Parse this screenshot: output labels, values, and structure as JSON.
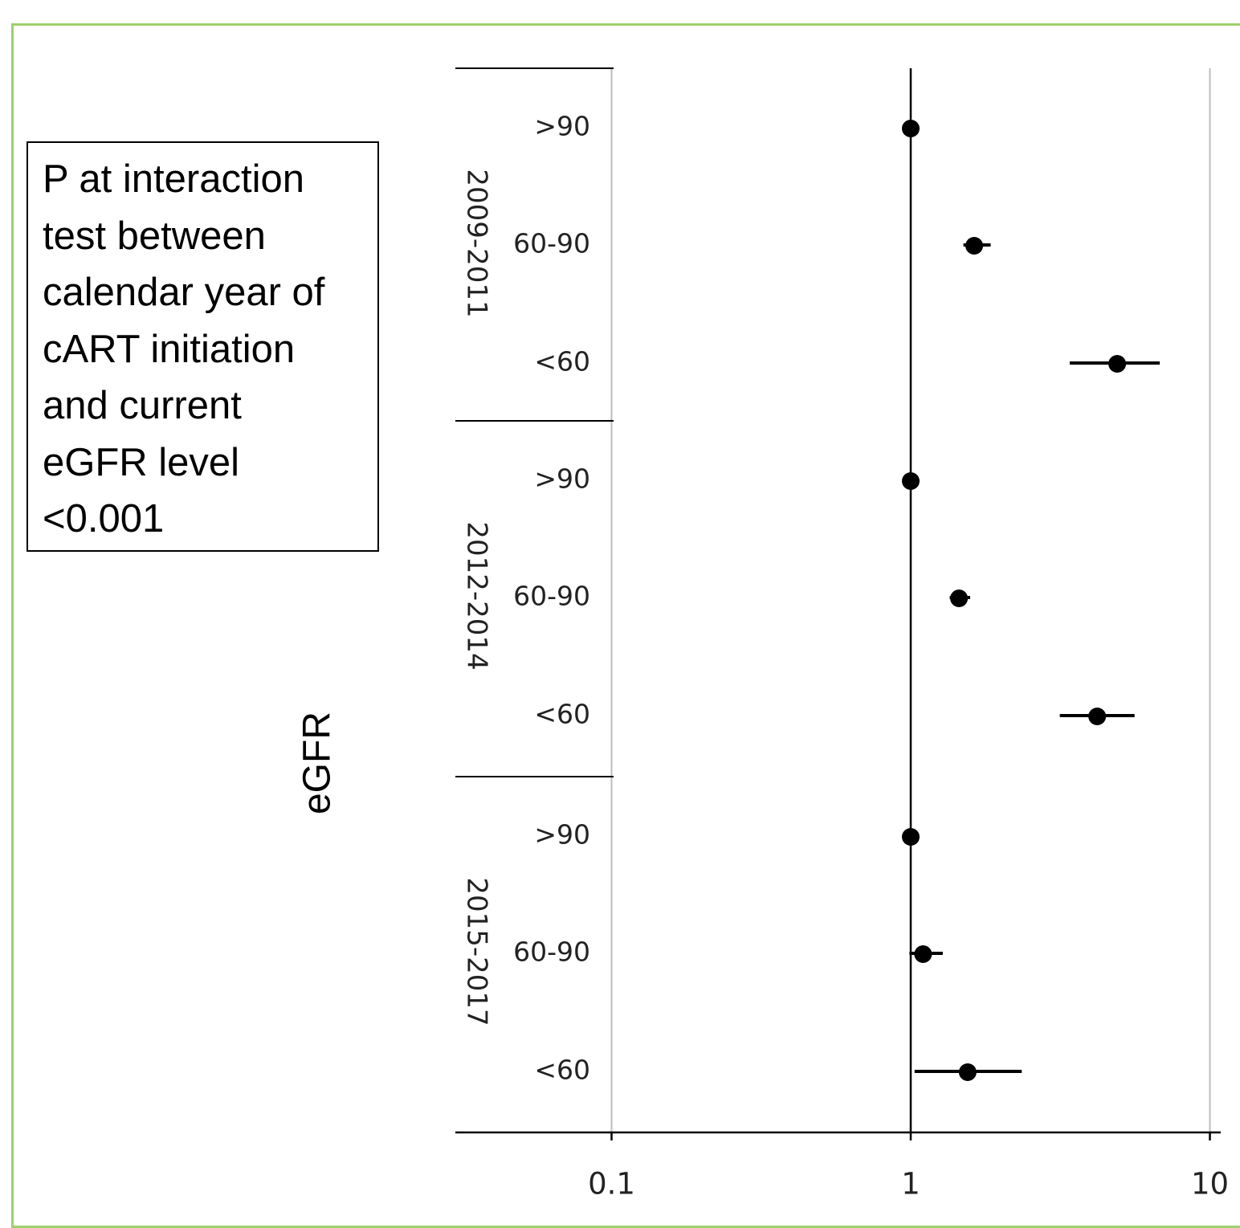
{
  "note": {
    "lines": [
      "P at interaction",
      "test between",
      "calendar year of",
      "cART initiation",
      "and current",
      "eGFR level",
      "<0.001"
    ]
  },
  "chart_data": {
    "type": "forest",
    "ylabel": "eGFR",
    "xscale": "log",
    "xlim": [
      0.035,
      10
    ],
    "xticks": [
      {
        "value": 0.1,
        "label": "0.1"
      },
      {
        "value": 1,
        "label": "1"
      },
      {
        "value": 10,
        "label": "10"
      }
    ],
    "reference_line": 1,
    "grid_x": true,
    "groups": [
      {
        "name": "2009-2011",
        "rows": [
          {
            "label": ">90",
            "estimate": 1.0,
            "lower": null,
            "upper": null
          },
          {
            "label": "60-90",
            "estimate": 1.63,
            "lower": 1.5,
            "upper": 1.85
          },
          {
            "label": "<60",
            "estimate": 4.9,
            "lower": 3.4,
            "upper": 6.8
          }
        ]
      },
      {
        "name": "2012-2014",
        "rows": [
          {
            "label": ">90",
            "estimate": 1.0,
            "lower": null,
            "upper": null
          },
          {
            "label": "60-90",
            "estimate": 1.45,
            "lower": 1.35,
            "upper": 1.58
          },
          {
            "label": "<60",
            "estimate": 4.2,
            "lower": 3.15,
            "upper": 5.6
          }
        ]
      },
      {
        "name": "2015-2017",
        "rows": [
          {
            "label": ">90",
            "estimate": 1.0,
            "lower": null,
            "upper": null
          },
          {
            "label": "60-90",
            "estimate": 1.1,
            "lower": 0.99,
            "upper": 1.28
          },
          {
            "label": "<60",
            "estimate": 1.55,
            "lower": 1.03,
            "upper": 2.35
          }
        ]
      }
    ]
  }
}
